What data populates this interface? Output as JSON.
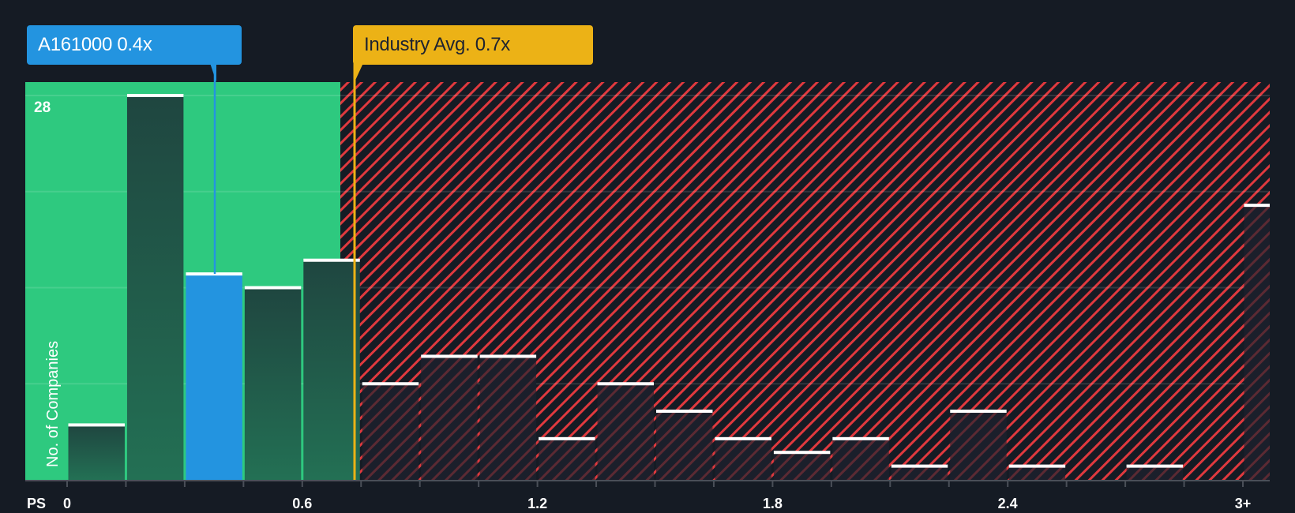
{
  "callouts": {
    "company": {
      "label": "A161000 0.4x",
      "value": 0.4,
      "color": "#2394e0"
    },
    "industry": {
      "label": "Industry Avg. 0.7x",
      "value": 0.7,
      "color": "#ecb216"
    }
  },
  "axes": {
    "x_prefix": "PS",
    "x_ticks": [
      "0",
      "0.6",
      "1.2",
      "1.8",
      "2.4",
      "3+"
    ],
    "y_label": "No. of Companies",
    "y_max_label": "28"
  },
  "colors": {
    "background": "#151b24",
    "undervalued_zone": "#2ec97f",
    "overvalued_hatch": "#e0393e",
    "bar_dark": "#1f4a3e",
    "bar_highlight": "#2394e0",
    "bar_top": "#ffffff"
  },
  "chart_data": {
    "type": "bar",
    "title": "",
    "xlabel": "PS",
    "ylabel": "No. of Companies",
    "ylim": [
      0,
      28
    ],
    "grid": true,
    "x_tick_labels": [
      "0",
      "0.6",
      "1.2",
      "1.8",
      "2.4",
      "3+"
    ],
    "bin_width": 0.15,
    "bins": [
      {
        "start": 0.0,
        "count": 4
      },
      {
        "start": 0.15,
        "count": 28
      },
      {
        "start": 0.3,
        "count": 15,
        "highlight": true
      },
      {
        "start": 0.45,
        "count": 14
      },
      {
        "start": 0.6,
        "count": 16
      },
      {
        "start": 0.75,
        "count": 7
      },
      {
        "start": 0.9,
        "count": 9
      },
      {
        "start": 1.05,
        "count": 9
      },
      {
        "start": 1.2,
        "count": 3
      },
      {
        "start": 1.35,
        "count": 7
      },
      {
        "start": 1.5,
        "count": 5
      },
      {
        "start": 1.65,
        "count": 3
      },
      {
        "start": 1.8,
        "count": 2
      },
      {
        "start": 1.95,
        "count": 3
      },
      {
        "start": 2.1,
        "count": 1
      },
      {
        "start": 2.25,
        "count": 5
      },
      {
        "start": 2.4,
        "count": 1
      },
      {
        "start": 2.55,
        "count": 0
      },
      {
        "start": 2.7,
        "count": 1
      },
      {
        "start": 2.85,
        "count": 0
      },
      {
        "start": 3.0,
        "label": "3+",
        "count": 20
      }
    ],
    "markers": [
      {
        "label": "A161000 0.4x",
        "x": 0.4
      },
      {
        "label": "Industry Avg. 0.7x",
        "x": 0.7
      }
    ],
    "zones": [
      {
        "name": "undervalued",
        "from": 0,
        "to": 0.7
      },
      {
        "name": "overvalued",
        "from": 0.7,
        "to": 3.0
      }
    ]
  }
}
